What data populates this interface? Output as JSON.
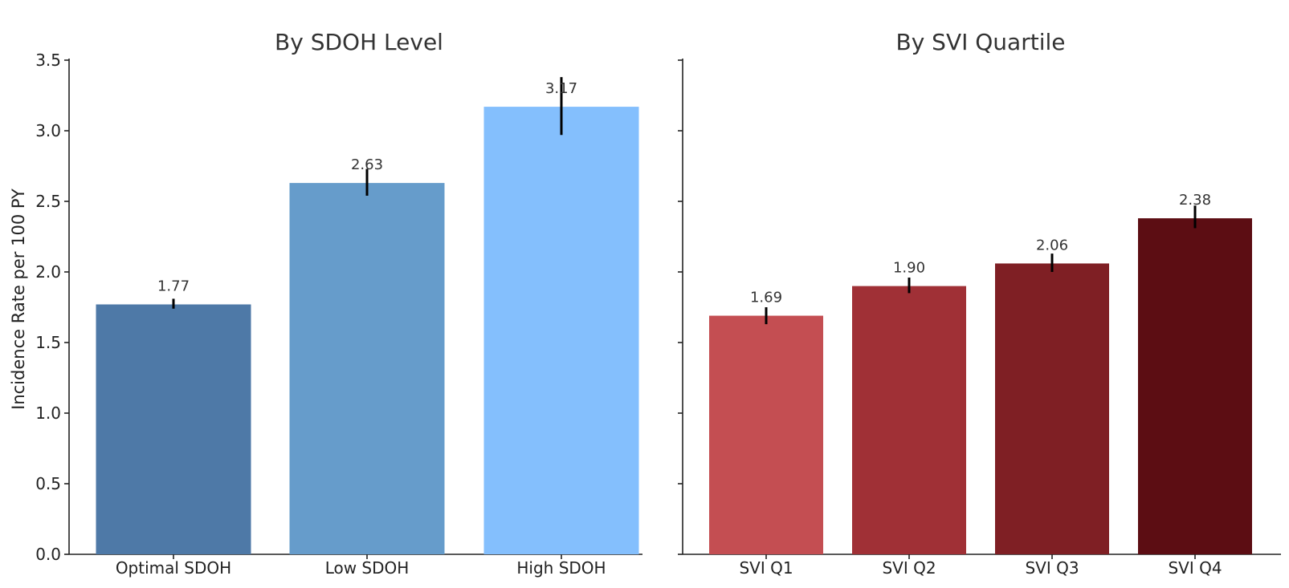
{
  "chart_data": [
    {
      "type": "bar",
      "title": "By SDOH Level",
      "xlabel": "",
      "ylabel": "Incidence Rate per 100 PY",
      "ylim": [
        0,
        3.5
      ],
      "yticks": [
        "0.0",
        "0.5",
        "1.0",
        "1.5",
        "2.0",
        "2.5",
        "3.0",
        "3.5"
      ],
      "categories": [
        "Optimal SDOH",
        "Low SDOH",
        "High SDOH"
      ],
      "values": [
        1.77,
        2.63,
        3.17
      ],
      "value_labels": [
        "1.77",
        "2.63",
        "3.17"
      ],
      "error_low": [
        1.74,
        2.54,
        2.97
      ],
      "error_high": [
        1.81,
        2.73,
        3.38
      ],
      "colors": [
        "#4e79a7",
        "#669ccb",
        "#84bffd"
      ]
    },
    {
      "type": "bar",
      "title": "By SVI Quartile",
      "xlabel": "",
      "ylabel": "",
      "ylim": [
        0,
        3.5
      ],
      "categories": [
        "SVI Q1",
        "SVI Q2",
        "SVI Q3",
        "SVI Q4"
      ],
      "values": [
        1.69,
        1.9,
        2.06,
        2.38
      ],
      "value_labels": [
        "1.69",
        "1.90",
        "2.06",
        "2.38"
      ],
      "error_low": [
        1.63,
        1.85,
        2.0,
        2.31
      ],
      "error_high": [
        1.75,
        1.96,
        2.13,
        2.47
      ],
      "colors": [
        "#c44e52",
        "#a03036",
        "#7f1f24",
        "#5c0d13"
      ]
    }
  ]
}
